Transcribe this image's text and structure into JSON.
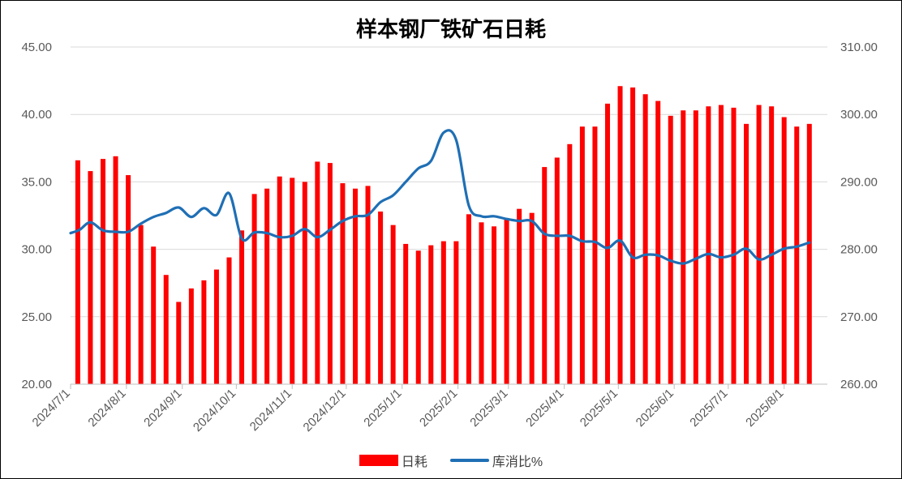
{
  "chart_data": {
    "type": "bar",
    "title": "样本钢厂铁矿石日耗",
    "y_left": {
      "ticks": [
        "45.00",
        "40.00",
        "35.00",
        "30.00",
        "25.00",
        "20.00"
      ],
      "min": 20,
      "max": 45
    },
    "y_right": {
      "ticks": [
        "310.00",
        "300.00",
        "290.00",
        "280.00",
        "270.00",
        "260.00"
      ],
      "min": 260,
      "max": 310
    },
    "x_ticks": [
      "2024/7/1",
      "2024/8/1",
      "2024/9/1",
      "2024/10/1",
      "2024/11/1",
      "2024/12/1",
      "2025/1/1",
      "2025/2/1",
      "2025/3/1",
      "2025/4/1",
      "2025/5/1",
      "2025/6/1",
      "2025/7/1",
      "2025/8/1"
    ],
    "x_start": "2024-07-01",
    "x_end": "2025-08-25",
    "grid": true,
    "legend_position": "bottom",
    "series": [
      {
        "name": "日耗",
        "type": "bar",
        "axis": "left",
        "color": "#ff0000",
        "points": [
          [
            "2024-07-05",
            36.6
          ],
          [
            "2024-07-12",
            35.8
          ],
          [
            "2024-07-19",
            36.7
          ],
          [
            "2024-07-26",
            36.9
          ],
          [
            "2024-08-02",
            35.5
          ],
          [
            "2024-08-09",
            31.8
          ],
          [
            "2024-08-16",
            30.2
          ],
          [
            "2024-08-23",
            28.1
          ],
          [
            "2024-08-30",
            26.1
          ],
          [
            "2024-09-06",
            27.1
          ],
          [
            "2024-09-13",
            27.7
          ],
          [
            "2024-09-20",
            28.5
          ],
          [
            "2024-09-27",
            29.4
          ],
          [
            "2024-10-04",
            31.4
          ],
          [
            "2024-10-11",
            34.1
          ],
          [
            "2024-10-18",
            34.5
          ],
          [
            "2024-10-25",
            35.4
          ],
          [
            "2024-11-01",
            35.3
          ],
          [
            "2024-11-08",
            35.0
          ],
          [
            "2024-11-15",
            36.5
          ],
          [
            "2024-11-22",
            36.4
          ],
          [
            "2024-11-29",
            34.9
          ],
          [
            "2024-12-06",
            34.5
          ],
          [
            "2024-12-13",
            34.7
          ],
          [
            "2024-12-20",
            32.8
          ],
          [
            "2024-12-27",
            31.8
          ],
          [
            "2025-01-03",
            30.4
          ],
          [
            "2025-01-10",
            29.9
          ],
          [
            "2025-01-17",
            30.3
          ],
          [
            "2025-01-24",
            30.6
          ],
          [
            "2025-01-31",
            30.6
          ],
          [
            "2025-02-07",
            32.6
          ],
          [
            "2025-02-14",
            32.0
          ],
          [
            "2025-02-21",
            31.7
          ],
          [
            "2025-02-28",
            32.2
          ],
          [
            "2025-03-07",
            33.0
          ],
          [
            "2025-03-14",
            32.7
          ],
          [
            "2025-03-21",
            36.1
          ],
          [
            "2025-03-28",
            36.8
          ],
          [
            "2025-04-04",
            37.8
          ],
          [
            "2025-04-11",
            39.1
          ],
          [
            "2025-04-18",
            39.1
          ],
          [
            "2025-04-25",
            40.8
          ],
          [
            "2025-05-02",
            42.1
          ],
          [
            "2025-05-09",
            42.0
          ],
          [
            "2025-05-16",
            41.5
          ],
          [
            "2025-05-23",
            41.0
          ],
          [
            "2025-05-30",
            39.9
          ],
          [
            "2025-06-06",
            40.3
          ],
          [
            "2025-06-13",
            40.3
          ],
          [
            "2025-06-20",
            40.6
          ],
          [
            "2025-06-27",
            40.7
          ],
          [
            "2025-07-04",
            40.5
          ],
          [
            "2025-07-11",
            39.3
          ],
          [
            "2025-07-18",
            40.7
          ],
          [
            "2025-07-25",
            40.6
          ],
          [
            "2025-08-01",
            39.8
          ],
          [
            "2025-08-08",
            39.1
          ],
          [
            "2025-08-15",
            39.3
          ]
        ]
      },
      {
        "name": "库消比%",
        "type": "line",
        "axis": "right",
        "color": "#1f6fb5",
        "points": [
          [
            "2024-07-01",
            282.4
          ],
          [
            "2024-07-06",
            282.9
          ],
          [
            "2024-07-12",
            284.0
          ],
          [
            "2024-07-19",
            282.8
          ],
          [
            "2024-07-26",
            282.6
          ],
          [
            "2024-08-02",
            282.6
          ],
          [
            "2024-08-09",
            283.8
          ],
          [
            "2024-08-16",
            284.8
          ],
          [
            "2024-08-23",
            285.4
          ],
          [
            "2024-08-30",
            286.2
          ],
          [
            "2024-09-06",
            284.8
          ],
          [
            "2024-09-13",
            286.1
          ],
          [
            "2024-09-20",
            285.1
          ],
          [
            "2024-09-27",
            288.3
          ],
          [
            "2024-10-04",
            281.6
          ],
          [
            "2024-10-11",
            282.5
          ],
          [
            "2024-10-18",
            282.4
          ],
          [
            "2024-10-25",
            281.8
          ],
          [
            "2024-11-01",
            282.0
          ],
          [
            "2024-11-08",
            283.0
          ],
          [
            "2024-11-15",
            281.8
          ],
          [
            "2024-11-22",
            282.9
          ],
          [
            "2024-11-29",
            284.2
          ],
          [
            "2024-12-06",
            284.9
          ],
          [
            "2024-12-13",
            285.1
          ],
          [
            "2024-12-20",
            287.0
          ],
          [
            "2024-12-27",
            288.0
          ],
          [
            "2025-01-03",
            290.0
          ],
          [
            "2025-01-10",
            292.0
          ],
          [
            "2025-01-17",
            293.1
          ],
          [
            "2025-01-24",
            297.3
          ],
          [
            "2025-01-31",
            296.2
          ],
          [
            "2025-02-07",
            286.5
          ],
          [
            "2025-02-14",
            284.9
          ],
          [
            "2025-02-21",
            284.9
          ],
          [
            "2025-02-28",
            284.5
          ],
          [
            "2025-03-07",
            284.2
          ],
          [
            "2025-03-14",
            284.2
          ],
          [
            "2025-03-21",
            282.3
          ],
          [
            "2025-03-28",
            282.0
          ],
          [
            "2025-04-04",
            282.0
          ],
          [
            "2025-04-11",
            281.2
          ],
          [
            "2025-04-18",
            281.1
          ],
          [
            "2025-04-25",
            280.2
          ],
          [
            "2025-05-02",
            281.3
          ],
          [
            "2025-05-09",
            278.8
          ],
          [
            "2025-05-16",
            279.2
          ],
          [
            "2025-05-23",
            279.1
          ],
          [
            "2025-05-30",
            278.3
          ],
          [
            "2025-06-06",
            277.9
          ],
          [
            "2025-06-13",
            278.6
          ],
          [
            "2025-06-20",
            279.3
          ],
          [
            "2025-06-27",
            278.8
          ],
          [
            "2025-07-04",
            279.2
          ],
          [
            "2025-07-11",
            280.1
          ],
          [
            "2025-07-18",
            278.5
          ],
          [
            "2025-07-25",
            279.2
          ],
          [
            "2025-08-01",
            280.1
          ],
          [
            "2025-08-08",
            280.4
          ],
          [
            "2025-08-15",
            281.0
          ]
        ]
      }
    ]
  }
}
